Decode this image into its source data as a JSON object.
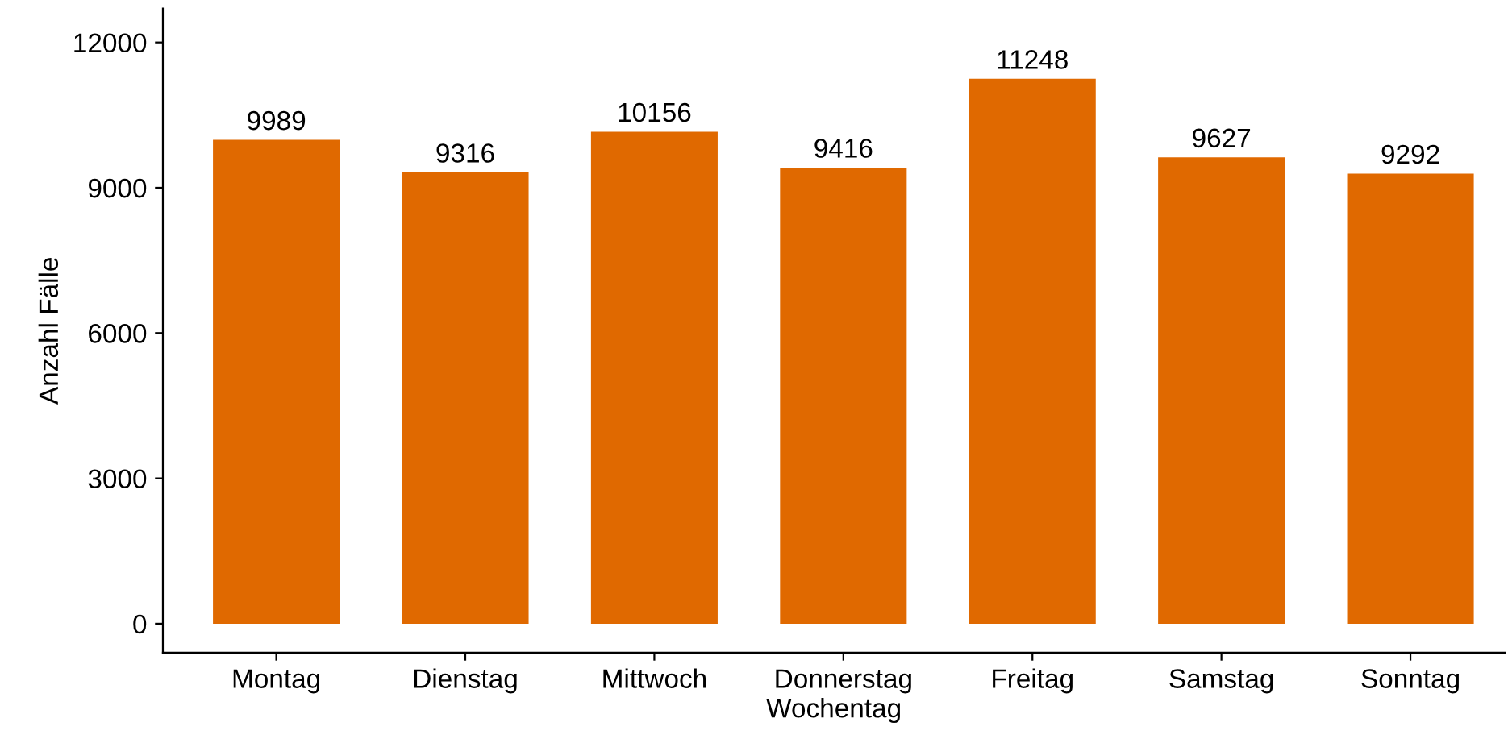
{
  "chart_data": {
    "type": "bar",
    "xlabel": "Wochentag",
    "ylabel": "Anzahl Fälle",
    "categories": [
      "Montag",
      "Dienstag",
      "Mittwoch",
      "Donnerstag",
      "Freitag",
      "Samstag",
      "Sonntag"
    ],
    "values": [
      9989,
      9316,
      10156,
      9416,
      11248,
      9627,
      9292
    ],
    "color": "#e06900",
    "data_labels": true,
    "ylim": [
      -600,
      12700
    ],
    "yticks": [
      0,
      3000,
      6000,
      9000,
      12000
    ],
    "grid": false,
    "legend": false
  }
}
